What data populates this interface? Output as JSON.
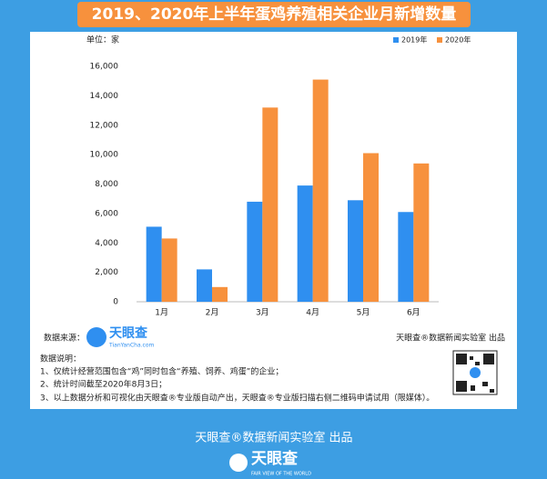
{
  "header": {
    "title": "2019、2020年上半年蛋鸡养殖相关企业月新增数量"
  },
  "chart_data": {
    "type": "bar",
    "unit_label": "单位：家",
    "categories": [
      "1月",
      "2月",
      "3月",
      "4月",
      "5月",
      "6月"
    ],
    "series": [
      {
        "name": "2019年",
        "color": "#2f8ff0",
        "values": [
          5100,
          2200,
          6800,
          7900,
          6900,
          6100
        ]
      },
      {
        "name": "2020年",
        "color": "#f7913d",
        "values": [
          4300,
          1000,
          13200,
          15100,
          10100,
          9400
        ]
      }
    ],
    "ylim": [
      0,
      16000
    ],
    "yticks": [
      0,
      {
        "value": 2000,
        "label": "2,000"
      },
      {
        "value": 4000,
        "label": "4,000"
      },
      {
        "value": 6000,
        "label": "6,000"
      },
      {
        "value": 8000,
        "label": "8,000"
      },
      {
        "value": 10000,
        "label": "10,000"
      },
      {
        "value": 12000,
        "label": "12,000"
      },
      {
        "value": 14000,
        "label": "14,000"
      },
      {
        "value": 16000,
        "label": "16,000"
      }
    ],
    "grid": false,
    "legend_position": "top-right"
  },
  "card_footer": {
    "source_label": "数据来源：",
    "source_logo": "天眼查",
    "source_url": "TianYanCha.com",
    "credit": "天眼查®数据新闻实验室 出品",
    "notes_title": "数据说明：",
    "notes": [
      "1、仅统计经营范围包含“鸡”同时包含“养殖、饲养、鸡蛋”的企业；",
      "2、统计时间截至2020年8月3日；",
      "3、以上数据分析和可视化由天眼查®专业版自动产出，天眼查®专业版扫描右侧二维码申请试用（限媒体）。"
    ]
  },
  "footer": {
    "credit": "天眼查®数据新闻实验室 出品",
    "logo": "天眼查",
    "slogan": "FAIR VIEW OF THE WORLD"
  }
}
